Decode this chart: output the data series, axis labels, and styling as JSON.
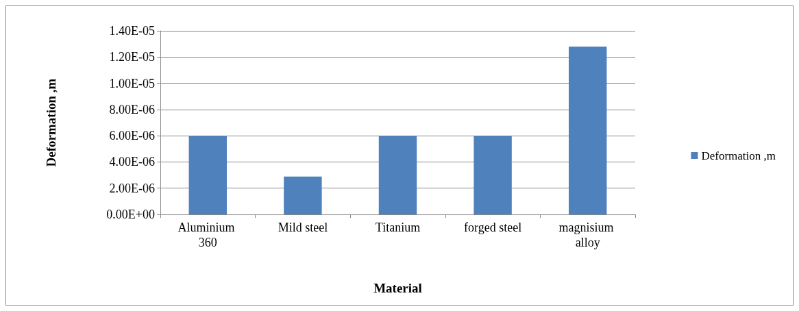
{
  "chart_data": {
    "type": "bar",
    "xlabel": "Material",
    "ylabel": "Deformation ,m",
    "categories": [
      "Aluminium 360",
      "Mild steel",
      "Titanium",
      "forged steel",
      "magnisium alloy"
    ],
    "series": [
      {
        "name": "Deformation ,m",
        "color": "#4f81bd",
        "values": [
          6e-06,
          2.88e-06,
          6e-06,
          6e-06,
          1.28e-05
        ]
      }
    ],
    "ylim": [
      0,
      1.4e-05
    ],
    "yticks": [
      {
        "value": 0,
        "label": "0.00E+00"
      },
      {
        "value": 2e-06,
        "label": "2.00E-06"
      },
      {
        "value": 4e-06,
        "label": "4.00E-06"
      },
      {
        "value": 6e-06,
        "label": "6.00E-06"
      },
      {
        "value": 8e-06,
        "label": "8.00E-06"
      },
      {
        "value": 1e-05,
        "label": "1.00E-05"
      },
      {
        "value": 1.2e-05,
        "label": "1.20E-05"
      },
      {
        "value": 1.4e-05,
        "label": "1.40E-05"
      }
    ],
    "grid": "y",
    "legend": "right"
  }
}
